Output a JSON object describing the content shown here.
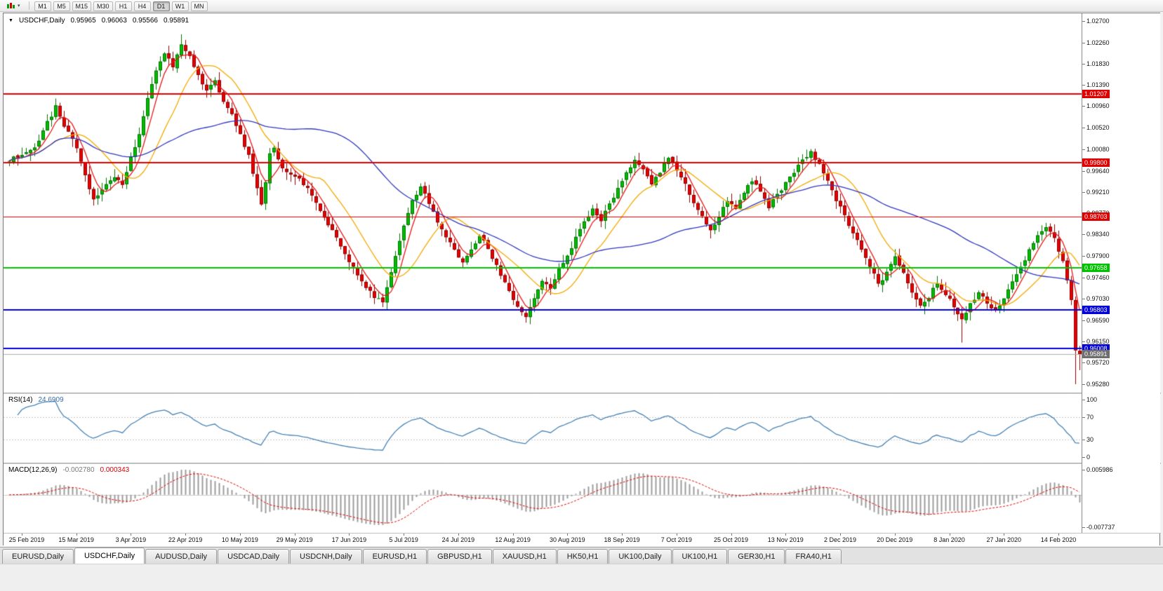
{
  "toolbar": {
    "timeframes": [
      "M1",
      "M5",
      "M15",
      "M30",
      "H1",
      "H4",
      "D1",
      "W1",
      "MN"
    ],
    "active_timeframe": "D1",
    "chart_type_icon": "candlestick-chart-icon",
    "dropdown_caret": "▾"
  },
  "chart_header": {
    "dropdown_icon": "▼",
    "symbol": "USDCHF,Daily",
    "open": "0.95965",
    "high": "0.96063",
    "low": "0.95566",
    "close": "0.95891"
  },
  "price_axis": {
    "ticks": [
      "1.02700",
      "1.02260",
      "1.01830",
      "1.01390",
      "1.00960",
      "1.00520",
      "1.00080",
      "0.99640",
      "0.99210",
      "0.98770",
      "0.98340",
      "0.97900",
      "0.97460",
      "0.97030",
      "0.96590",
      "0.96150",
      "0.95720",
      "0.95280"
    ]
  },
  "time_axis": {
    "labels": [
      {
        "index": 3,
        "text": "25 Feb 2019"
      },
      {
        "index": 16,
        "text": "15 Mar 2019"
      },
      {
        "index": 29,
        "text": "3 Apr 2019"
      },
      {
        "index": 42,
        "text": "22 Apr 2019"
      },
      {
        "index": 55,
        "text": "10 May 2019"
      },
      {
        "index": 68,
        "text": "29 May 2019"
      },
      {
        "index": 81,
        "text": "17 Jun 2019"
      },
      {
        "index": 94,
        "text": "5 Jul 2019"
      },
      {
        "index": 107,
        "text": "24 Jul 2019"
      },
      {
        "index": 120,
        "text": "12 Aug 2019"
      },
      {
        "index": 133,
        "text": "30 Aug 2019"
      },
      {
        "index": 146,
        "text": "18 Sep 2019"
      },
      {
        "index": 159,
        "text": "7 Oct 2019"
      },
      {
        "index": 172,
        "text": "25 Oct 2019"
      },
      {
        "index": 185,
        "text": "13 Nov 2019"
      },
      {
        "index": 198,
        "text": "2 Dec 2019"
      },
      {
        "index": 211,
        "text": "20 Dec 2019"
      },
      {
        "index": 224,
        "text": "8 Jan 2020"
      },
      {
        "index": 237,
        "text": "27 Jan 2020"
      },
      {
        "index": 250,
        "text": "14 Feb 2020"
      }
    ]
  },
  "rsi": {
    "name": "RSI(14)",
    "value": "24.6909",
    "period": 14,
    "levels": [
      "100",
      "70",
      "30",
      "0"
    ],
    "level_values": [
      100,
      70,
      30,
      0
    ],
    "line_color": "#4682B4"
  },
  "macd": {
    "name": "MACD(12,26,9)",
    "main_value": "-0.002780",
    "signal_value": "0.000343",
    "params": [
      12,
      26,
      9
    ],
    "axis_max": "0.005986",
    "axis_min": "-0.007737",
    "histogram_color": "#9C9C9C",
    "signal_color": "#E00000"
  },
  "tabs": {
    "items": [
      "EURUSD,Daily",
      "USDCHF,Daily",
      "AUDUSD,Daily",
      "USDCAD,Daily",
      "USDCNH,Daily",
      "EURUSD,H1",
      "GBPUSD,H1",
      "XAUUSD,H1",
      "HK50,H1",
      "UK100,Daily",
      "UK100,H1",
      "GER30,H1",
      "FRA40,H1"
    ],
    "active": "USDCHF,Daily"
  },
  "colors": {
    "up": "#00BE00",
    "up_border": "#007000",
    "down": "#EA0000",
    "down_border": "#8C0000",
    "bid_line": "#ACACAC",
    "bid_badge": "#6E6E6E",
    "level_dash": "#C8C8C8",
    "zero_line": "#CCCCCC"
  },
  "chart_data": {
    "type": "candlestick",
    "symbol": "USDCHF",
    "timeframe": "Daily",
    "candle_count": 256,
    "y_axis_range": [
      0.95137,
      1.02858
    ],
    "last_candle": {
      "open": 0.95965,
      "high": 0.96063,
      "low": 0.95566,
      "close": 0.95891
    },
    "prev_candle_low": 0.9528,
    "forced_wicks": [
      {
        "index": 227,
        "low": 0.9613
      },
      {
        "index": 41,
        "high": 1.0243
      },
      {
        "index": 11,
        "high": 1.0108
      }
    ],
    "hlines": [
      {
        "value": "1.01207",
        "price": 1.01207,
        "color": "#E00000",
        "width": 2
      },
      {
        "value": "0.99800",
        "price": 0.998,
        "color": "#E00000",
        "width": 2
      },
      {
        "value": "0.98703",
        "price": 0.98703,
        "color": "#E00000",
        "width": 1
      },
      {
        "value": "0.97658",
        "price": 0.97658,
        "color": "#00C300",
        "width": 2
      },
      {
        "value": "0.96803",
        "price": 0.96803,
        "color": "#0000DC",
        "width": 2
      },
      {
        "value": "0.96008",
        "price": 0.96008,
        "color": "#0000DC",
        "width": 2
      }
    ],
    "bid": {
      "value": "0.95891",
      "price": 0.95891
    },
    "moving_averages": [
      {
        "period": 5,
        "color": "#E81818"
      },
      {
        "period": 14,
        "color": "#F5A800"
      },
      {
        "period": 50,
        "color": "#3038BE"
      }
    ],
    "close_anchors": [
      [
        0,
        0.9985
      ],
      [
        3,
        0.9998
      ],
      [
        6,
        1.0008
      ],
      [
        9,
        1.0062
      ],
      [
        11,
        1.0094
      ],
      [
        13,
        1.0056
      ],
      [
        16,
        1.0014
      ],
      [
        18,
        0.9954
      ],
      [
        20,
        0.9906
      ],
      [
        22,
        0.9924
      ],
      [
        25,
        0.9952
      ],
      [
        27,
        0.9936
      ],
      [
        29,
        0.9992
      ],
      [
        31,
        1.0038
      ],
      [
        33,
        1.0112
      ],
      [
        35,
        1.0172
      ],
      [
        37,
        1.0206
      ],
      [
        39,
        1.0178
      ],
      [
        41,
        1.0226
      ],
      [
        43,
        1.0196
      ],
      [
        45,
        1.0162
      ],
      [
        47,
        1.0126
      ],
      [
        49,
        1.0148
      ],
      [
        51,
        1.0108
      ],
      [
        53,
        1.0078
      ],
      [
        55,
        1.0036
      ],
      [
        57,
        0.9996
      ],
      [
        59,
        0.9926
      ],
      [
        60,
        0.9898
      ],
      [
        61,
        0.9944
      ],
      [
        62,
        0.9996
      ],
      [
        63,
        1.0012
      ],
      [
        65,
        0.997
      ],
      [
        69,
        0.995
      ],
      [
        73,
        0.99
      ],
      [
        77,
        0.984
      ],
      [
        81,
        0.978
      ],
      [
        85,
        0.9724
      ],
      [
        88,
        0.97
      ],
      [
        89,
        0.9694
      ],
      [
        91,
        0.9754
      ],
      [
        94,
        0.985
      ],
      [
        96,
        0.9906
      ],
      [
        98,
        0.993
      ],
      [
        100,
        0.9898
      ],
      [
        102,
        0.986
      ],
      [
        104,
        0.983
      ],
      [
        106,
        0.98
      ],
      [
        108,
        0.9774
      ],
      [
        110,
        0.9802
      ],
      [
        112,
        0.9832
      ],
      [
        114,
        0.9804
      ],
      [
        116,
        0.977
      ],
      [
        118,
        0.9734
      ],
      [
        120,
        0.97
      ],
      [
        122,
        0.9674
      ],
      [
        123,
        0.9662
      ],
      [
        125,
        0.9706
      ],
      [
        127,
        0.9742
      ],
      [
        129,
        0.9724
      ],
      [
        131,
        0.9762
      ],
      [
        133,
        0.9792
      ],
      [
        135,
        0.9826
      ],
      [
        137,
        0.9858
      ],
      [
        139,
        0.9888
      ],
      [
        141,
        0.9864
      ],
      [
        143,
        0.9896
      ],
      [
        145,
        0.9926
      ],
      [
        147,
        0.9958
      ],
      [
        149,
        0.9988
      ],
      [
        151,
        0.9964
      ],
      [
        153,
        0.9936
      ],
      [
        155,
        0.9962
      ],
      [
        157,
        0.999
      ],
      [
        159,
        0.9968
      ],
      [
        161,
        0.9934
      ],
      [
        163,
        0.9898
      ],
      [
        165,
        0.9868
      ],
      [
        167,
        0.9844
      ],
      [
        169,
        0.9872
      ],
      [
        171,
        0.9902
      ],
      [
        173,
        0.9884
      ],
      [
        175,
        0.9918
      ],
      [
        177,
        0.9946
      ],
      [
        179,
        0.992
      ],
      [
        181,
        0.989
      ],
      [
        183,
        0.9916
      ],
      [
        185,
        0.9938
      ],
      [
        187,
        0.9962
      ],
      [
        189,
        0.9986
      ],
      [
        191,
        1.0002
      ],
      [
        193,
        0.9976
      ],
      [
        195,
        0.9944
      ],
      [
        197,
        0.9906
      ],
      [
        199,
        0.9872
      ],
      [
        201,
        0.9838
      ],
      [
        203,
        0.9804
      ],
      [
        205,
        0.977
      ],
      [
        207,
        0.9734
      ],
      [
        209,
        0.9754
      ],
      [
        211,
        0.9786
      ],
      [
        213,
        0.9754
      ],
      [
        215,
        0.9716
      ],
      [
        217,
        0.9686
      ],
      [
        219,
        0.9706
      ],
      [
        221,
        0.9736
      ],
      [
        223,
        0.9712
      ],
      [
        225,
        0.9686
      ],
      [
        227,
        0.9662
      ],
      [
        229,
        0.9692
      ],
      [
        231,
        0.9716
      ],
      [
        233,
        0.9696
      ],
      [
        235,
        0.9676
      ],
      [
        237,
        0.9706
      ],
      [
        239,
        0.974
      ],
      [
        241,
        0.977
      ],
      [
        243,
        0.98
      ],
      [
        245,
        0.983
      ],
      [
        247,
        0.9848
      ],
      [
        249,
        0.9824
      ],
      [
        251,
        0.9776
      ],
      [
        252,
        0.974
      ],
      [
        253,
        0.97
      ],
      [
        254,
        0.9597
      ],
      [
        255,
        0.9589
      ]
    ]
  }
}
